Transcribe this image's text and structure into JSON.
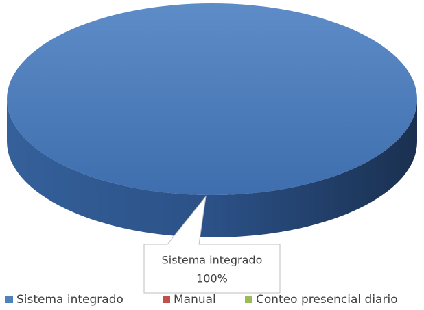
{
  "chart_data": {
    "type": "pie",
    "categories": [
      "Sistema integrado",
      "Manual",
      "Conteo presencial diario"
    ],
    "values": [
      100,
      0,
      0
    ],
    "value_labels": [
      "100%",
      null,
      null
    ],
    "colors": [
      "#4f81bd",
      "#c0504d",
      "#9bbb59"
    ],
    "legend": "bottom"
  }
}
